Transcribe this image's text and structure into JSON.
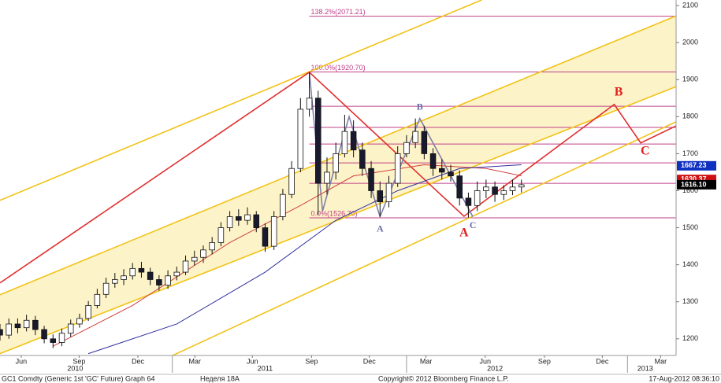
{
  "chart_data": {
    "type": "candlestick",
    "xlim": [
      0,
      153
    ],
    "ylim": [
      1155,
      2115
    ],
    "xticks": [
      {
        "value": 4.8,
        "label": "Jun"
      },
      {
        "value": 17.9,
        "label": "Sep"
      },
      {
        "value": 31.2,
        "label": "Dec"
      },
      {
        "value": 44.1,
        "label": "Mar"
      },
      {
        "value": 57.1,
        "label": "Jun"
      },
      {
        "value": 70.5,
        "label": "Sep"
      },
      {
        "value": 83.6,
        "label": "Dec"
      },
      {
        "value": 96.4,
        "label": "Mar"
      },
      {
        "value": 109.8,
        "label": "Jun"
      },
      {
        "value": 123.2,
        "label": "Sep"
      },
      {
        "value": 136.3,
        "label": "Dec"
      },
      {
        "value": 149.5,
        "label": "Mar"
      }
    ],
    "year_ticks": [
      {
        "value": 17,
        "label": "2010"
      },
      {
        "value": 60,
        "label": "2011"
      },
      {
        "value": 112,
        "label": "2012"
      },
      {
        "value": 146,
        "label": "2013"
      }
    ],
    "year_dividers": [
      39,
      92,
      142
    ],
    "yticks": [
      1200,
      1300,
      1400,
      1500,
      1600,
      1700,
      1800,
      1900,
      2000,
      2100
    ],
    "up_color": "#ffffff",
    "down_color": "#1a1a2e",
    "candles": {
      "x": [
        0,
        2,
        4,
        6,
        8,
        10,
        12,
        14,
        16,
        18,
        20,
        22,
        24,
        26,
        28,
        30,
        32,
        34,
        36,
        38,
        40,
        42,
        44,
        46,
        48,
        50,
        52,
        54,
        56,
        58,
        60,
        62,
        64,
        66,
        68,
        70,
        72,
        74,
        76,
        78,
        80,
        82,
        84,
        86,
        88,
        90,
        92,
        94,
        96,
        98,
        100,
        102,
        104,
        106,
        108,
        110,
        112,
        114,
        116,
        118
      ],
      "open": [
        1225,
        1210,
        1240,
        1230,
        1250,
        1225,
        1200,
        1190,
        1215,
        1240,
        1255,
        1290,
        1320,
        1350,
        1360,
        1370,
        1390,
        1380,
        1360,
        1345,
        1370,
        1380,
        1410,
        1420,
        1440,
        1460,
        1500,
        1530,
        1520,
        1535,
        1500,
        1450,
        1530,
        1590,
        1660,
        1820,
        1850,
        1620,
        1650,
        1700,
        1760,
        1710,
        1660,
        1600,
        1570,
        1620,
        1700,
        1730,
        1760,
        1700,
        1660,
        1650,
        1640,
        1580,
        1560,
        1600,
        1610,
        1590,
        1600,
        1610
      ],
      "high": [
        1240,
        1255,
        1255,
        1265,
        1262,
        1235,
        1212,
        1228,
        1252,
        1268,
        1302,
        1335,
        1365,
        1378,
        1388,
        1405,
        1408,
        1392,
        1372,
        1385,
        1395,
        1425,
        1438,
        1452,
        1475,
        1515,
        1545,
        1550,
        1555,
        1545,
        1512,
        1545,
        1605,
        1680,
        1850,
        1920,
        1870,
        1690,
        1730,
        1805,
        1790,
        1730,
        1680,
        1625,
        1640,
        1720,
        1750,
        1795,
        1775,
        1715,
        1685,
        1670,
        1655,
        1595,
        1625,
        1630,
        1625,
        1615,
        1630,
        1630
      ],
      "low": [
        1195,
        1200,
        1215,
        1220,
        1210,
        1188,
        1175,
        1180,
        1205,
        1230,
        1248,
        1282,
        1310,
        1338,
        1345,
        1360,
        1365,
        1345,
        1330,
        1335,
        1358,
        1372,
        1398,
        1405,
        1428,
        1450,
        1490,
        1505,
        1508,
        1488,
        1435,
        1440,
        1520,
        1580,
        1650,
        1800,
        1535,
        1590,
        1630,
        1690,
        1690,
        1640,
        1580,
        1530,
        1555,
        1610,
        1690,
        1715,
        1685,
        1640,
        1630,
        1625,
        1560,
        1527,
        1545,
        1580,
        1570,
        1575,
        1588,
        1595
      ],
      "close": [
        1210,
        1240,
        1230,
        1250,
        1225,
        1200,
        1190,
        1215,
        1240,
        1255,
        1290,
        1320,
        1350,
        1360,
        1370,
        1390,
        1380,
        1360,
        1345,
        1370,
        1380,
        1410,
        1420,
        1440,
        1460,
        1500,
        1530,
        1520,
        1535,
        1500,
        1450,
        1530,
        1590,
        1660,
        1820,
        1850,
        1620,
        1650,
        1700,
        1760,
        1710,
        1660,
        1600,
        1570,
        1620,
        1700,
        1730,
        1760,
        1700,
        1660,
        1650,
        1640,
        1580,
        1560,
        1600,
        1610,
        1590,
        1600,
        1610,
        1616
      ]
    },
    "series": [
      {
        "color": "#d04040",
        "x": [
          12,
          30,
          52,
          68,
          80,
          96,
          110,
          118
        ],
        "values": [
          1180,
          1290,
          1460,
          1560,
          1640,
          1670,
          1660,
          1640
        ]
      },
      {
        "color": "#3030a0",
        "x": [
          20,
          40,
          60,
          76,
          90,
          104,
          118
        ],
        "values": [
          1160,
          1240,
          1380,
          1520,
          1600,
          1660,
          1670
        ]
      }
    ],
    "channel_fill": "#fdf3c8",
    "channel": [
      1,
      2
    ],
    "lines": [
      {
        "color": "#f2c318",
        "x": [
          0,
          109
        ],
        "y": [
          1574,
          2115
        ]
      },
      {
        "color": "#f2c318",
        "x": [
          0,
          153
        ],
        "y": [
          1319,
          2072
        ]
      },
      {
        "color": "#f2c318",
        "x": [
          0,
          153
        ],
        "y": [
          1160,
          1881
        ]
      },
      {
        "color": "#f2c318",
        "x": [
          36,
          153
        ],
        "y": [
          1138,
          1786
        ]
      },
      {
        "color": "#e03030",
        "x": [
          0,
          70,
          105,
          139,
          145,
          153
        ],
        "y": [
          1351,
          1920,
          1531,
          1833,
          1729,
          1775
        ]
      },
      {
        "color": "#8080a8",
        "x": [
          70,
          73,
          79,
          86,
          95,
          107
        ],
        "y": [
          1920,
          1545,
          1800,
          1530,
          1795,
          1530
        ]
      }
    ],
    "level_color": "#c0408a",
    "levels_from": 70,
    "levels": [
      {
        "value": 2071.21,
        "label": "138.2%(2071.21)"
      },
      {
        "value": 1920.7,
        "label": "100.0%(1920.70)"
      },
      {
        "value": 1526.7,
        "label": "0.0%(1526.70)"
      },
      1828,
      1771,
      1726,
      1675,
      1620
    ],
    "annotations": [
      {
        "text": "A",
        "x": 86,
        "y": 1495,
        "color": "#6a6aa8"
      },
      {
        "text": "B",
        "x": 95,
        "y": 1825,
        "color": "#6a6aa8"
      },
      {
        "text": "C",
        "x": 107,
        "y": 1505,
        "color": "#6a6aa8"
      },
      {
        "text": "A",
        "x": 105,
        "y": 1485,
        "color": "#e02020"
      },
      {
        "text": "B",
        "x": 140,
        "y": 1865,
        "color": "#e02020"
      },
      {
        "text": "C",
        "x": 146,
        "y": 1705,
        "color": "#e02020"
      }
    ],
    "last_values": [
      {
        "value": 1667.23,
        "color": "#1030c0"
      },
      {
        "value": 1630.37,
        "color": "#d01010"
      },
      {
        "value": 1616.1,
        "label": "1616.10",
        "color": "#000000"
      }
    ],
    "footer": {
      "source": "GC1 Comdty (Generic 1st 'GC' Future) Graph 64",
      "week": "Неделя 18А",
      "copyright": "Copyright© 2012 Bloomberg Finance L.P.",
      "timestamp": "17-Aug-2012 08:36:10"
    }
  }
}
